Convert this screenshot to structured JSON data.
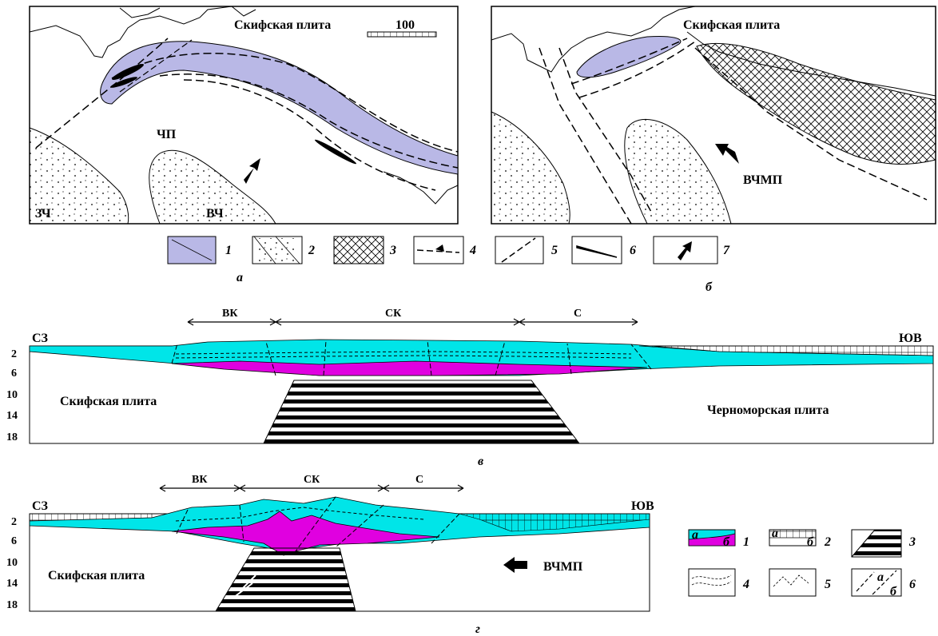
{
  "colors": {
    "lavender": "#b9b8e6",
    "cyan": "#00e5e8",
    "magenta": "#e000e0",
    "stroke": "#000000"
  },
  "panel_a": {
    "letter": "а",
    "plate": "Скифская плита",
    "scale": "100",
    "chp": "ЧП",
    "zch": "ЗЧ",
    "vch": "ВЧ"
  },
  "panel_b": {
    "letter": "б",
    "plate": "Скифская плита",
    "vchmp": "ВЧМП"
  },
  "legend_top": [
    "1",
    "2",
    "3",
    "4",
    "5",
    "6",
    "7"
  ],
  "section_v": {
    "letter": "в",
    "nw": "СЗ",
    "se": "ЮВ",
    "seg_vk": "ВК",
    "seg_sk": "СК",
    "seg_s": "С",
    "left_plate": "Скифская плита",
    "right_plate": "Черноморская плита",
    "depths": [
      "2",
      "6",
      "10",
      "14",
      "18"
    ]
  },
  "section_g": {
    "letter": "г",
    "nw": "СЗ",
    "se": "ЮВ",
    "seg_vk": "ВК",
    "seg_sk": "СК",
    "seg_s": "С",
    "left_plate": "Скифская плита",
    "vchmp": "ВЧМП",
    "depths": [
      "2",
      "6",
      "10",
      "14",
      "18"
    ]
  },
  "legend_bottom": {
    "numbers": [
      "1",
      "2",
      "3",
      "4",
      "5",
      "6"
    ],
    "sub_a": "а",
    "sub_b": "б"
  }
}
